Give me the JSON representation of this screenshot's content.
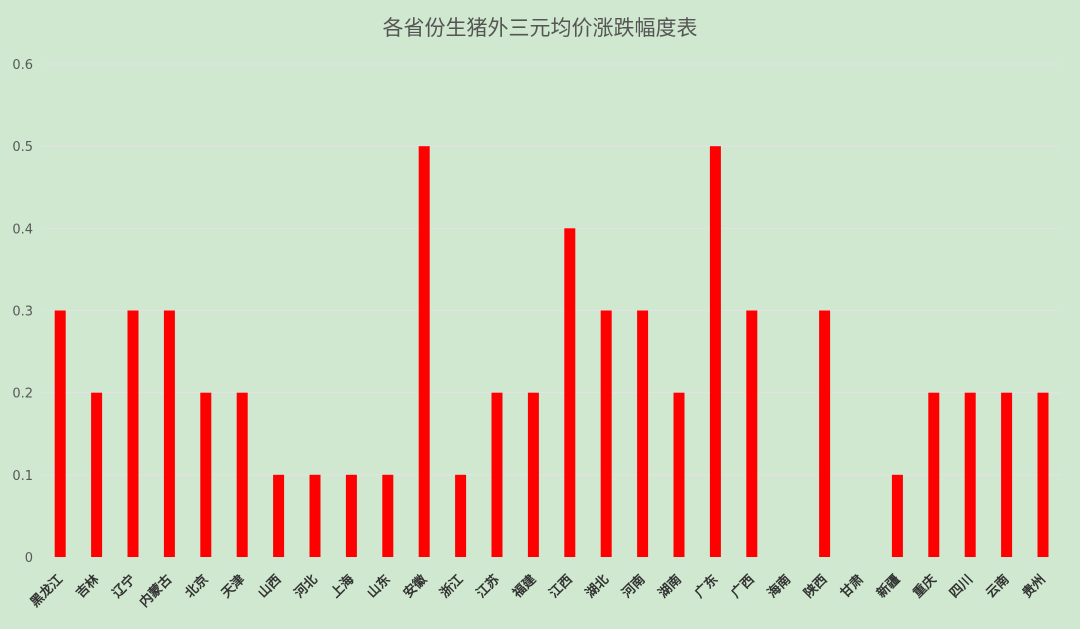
{
  "chart_data": {
    "type": "bar",
    "title": "各省份生猪外三元均价涨跌幅度表",
    "categories": [
      "黑龙江",
      "吉林",
      "辽宁",
      "内蒙古",
      "北京",
      "天津",
      "山西",
      "河北",
      "上海",
      "山东",
      "安徽",
      "浙江",
      "江苏",
      "福建",
      "江西",
      "湖北",
      "河南",
      "湖南",
      "广东",
      "广西",
      "海南",
      "陕西",
      "甘肃",
      "新疆",
      "重庆",
      "四川",
      "云南",
      "贵州"
    ],
    "values": [
      0.3,
      0.2,
      0.3,
      0.3,
      0.2,
      0.2,
      0.1,
      0.1,
      0.1,
      0.1,
      0.5,
      0.1,
      0.2,
      0.2,
      0.4,
      0.3,
      0.3,
      0.2,
      0.5,
      0.3,
      0,
      0.3,
      0,
      0.1,
      0.2,
      0.2,
      0.2,
      0.2
    ],
    "yticks": [
      "0",
      "0.1",
      "0.2",
      "0.3",
      "0.4",
      "0.5",
      "0.6"
    ],
    "ylim": [
      0,
      0.6
    ],
    "grid": true,
    "colors": {
      "bar": "#ff0000",
      "grid": "#e6e0e6",
      "background": "#cfe8cf"
    }
  }
}
